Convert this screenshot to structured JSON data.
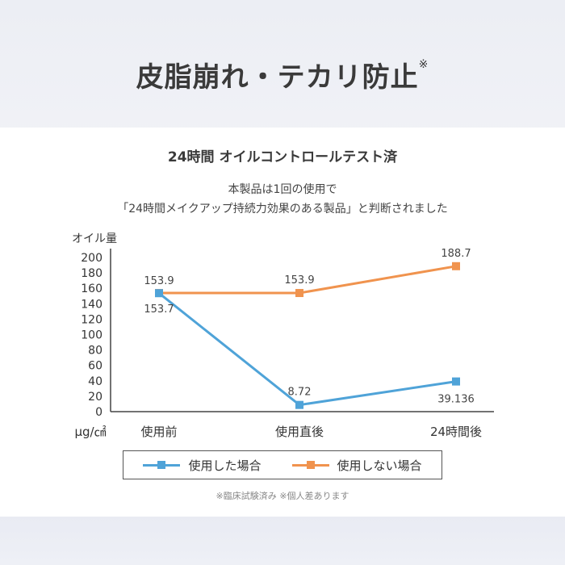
{
  "headline": {
    "text": "皮脂崩れ・テカリ防止",
    "mark": "※"
  },
  "test_title": "24時間 オイルコントロールテスト済",
  "description": {
    "line1": "本製品は1回の使用で",
    "line2": "「24時間メイクアップ持続力効果のある製品」と判断されました"
  },
  "footnote": "※臨床試験済み ※個人差あります",
  "chart_data": {
    "type": "line",
    "title": "24時間 オイルコントロールテスト済",
    "ylabel": "オイル量",
    "xlabel": "μg/㎠",
    "categories": [
      "使用前",
      "使用直後",
      "24時間後"
    ],
    "ylim": [
      0,
      200
    ],
    "yticks": [
      0,
      20,
      40,
      60,
      80,
      100,
      120,
      140,
      160,
      180,
      200
    ],
    "grid": false,
    "legend_position": "bottom",
    "series": [
      {
        "name": "使用した場合",
        "color": "#4fa3d8",
        "values": [
          153.7,
          8.72,
          39.136
        ],
        "labels": [
          "153.7",
          "8.72",
          "39.136"
        ]
      },
      {
        "name": "使用しない場合",
        "color": "#f0934e",
        "values": [
          153.9,
          153.9,
          188.7
        ],
        "labels": [
          "153.9",
          "153.9",
          "188.7"
        ]
      }
    ]
  }
}
